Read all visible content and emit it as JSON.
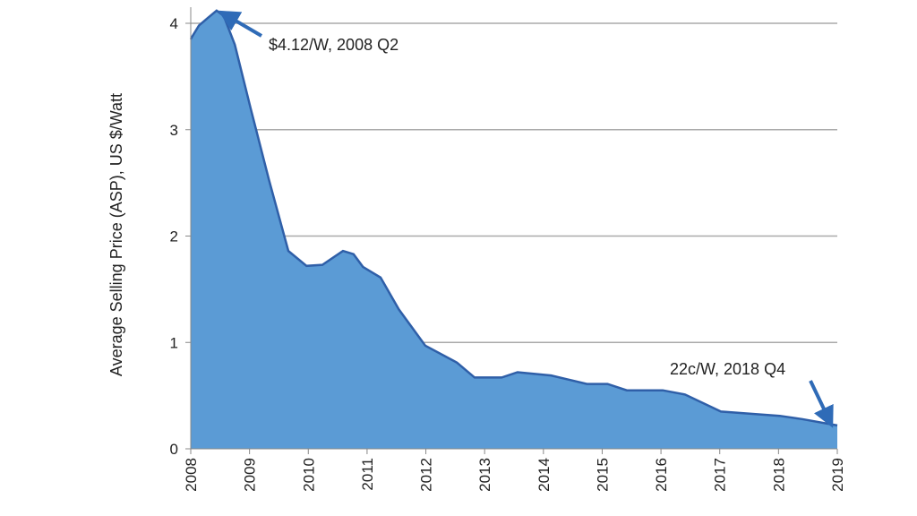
{
  "chart_data": {
    "type": "area",
    "title": "",
    "xlabel": "",
    "ylabel": "Average Selling Price (ASP),  US $/Watt",
    "xlim": [
      2008,
      2019
    ],
    "ylim": [
      0,
      4
    ],
    "x_ticks": [
      "2008",
      "2009",
      "2010",
      "2011",
      "2012",
      "2013",
      "2014",
      "2015",
      "2016",
      "2017",
      "2018",
      "2019"
    ],
    "y_ticks": [
      "0",
      "1",
      "2",
      "3",
      "4"
    ],
    "grid": "horizontal",
    "colors": {
      "fill": "#5b9bd5",
      "line": "#2f5fa8",
      "arrow": "#2f6bb7"
    },
    "x": [
      2008.0,
      2008.02,
      2008.14,
      2008.29,
      2008.44,
      2008.56,
      2008.75,
      2009.02,
      2009.33,
      2009.66,
      2009.97,
      2010.24,
      2010.59,
      2010.77,
      2010.93,
      2011.23,
      2011.54,
      2011.99,
      2012.53,
      2012.83,
      2013.29,
      2013.56,
      2014.13,
      2014.74,
      2015.09,
      2015.42,
      2016.03,
      2016.41,
      2017.02,
      2018.02,
      2018.4,
      2019.0
    ],
    "y": [
      3.85,
      3.87,
      3.98,
      4.05,
      4.12,
      4.07,
      3.8,
      3.2,
      2.53,
      1.86,
      1.72,
      1.73,
      1.86,
      1.83,
      1.71,
      1.61,
      1.31,
      0.97,
      0.81,
      0.67,
      0.67,
      0.72,
      0.69,
      0.61,
      0.61,
      0.55,
      0.55,
      0.51,
      0.35,
      0.31,
      0.28,
      0.22
    ],
    "annotations": [
      {
        "text": "$4.12/W, 2008 Q2",
        "x": 2008.44,
        "y": 4.12
      },
      {
        "text": "22c/W, 2018 Q4",
        "x": 2019.0,
        "y": 0.22
      }
    ]
  }
}
